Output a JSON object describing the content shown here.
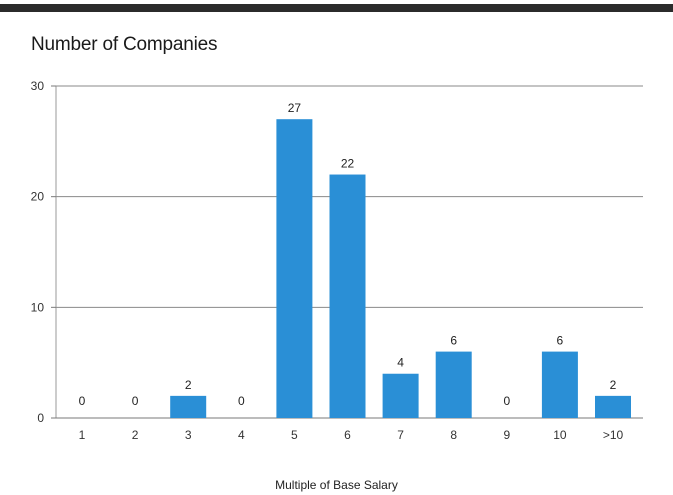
{
  "chart_data": {
    "type": "bar",
    "title": "Number of Companies",
    "xlabel": "Multiple of Base Salary",
    "ylabel": "",
    "categories": [
      "1",
      "2",
      "3",
      "4",
      "5",
      "6",
      "7",
      "8",
      "9",
      "10",
      ">10"
    ],
    "values": [
      0,
      0,
      2,
      0,
      27,
      22,
      4,
      6,
      0,
      6,
      2
    ],
    "ylim": [
      0,
      30
    ],
    "yticks": [
      0,
      10,
      20,
      30
    ],
    "grid": true,
    "legend": "none",
    "bar_color": "#2a8fd6",
    "data_labels": true
  }
}
